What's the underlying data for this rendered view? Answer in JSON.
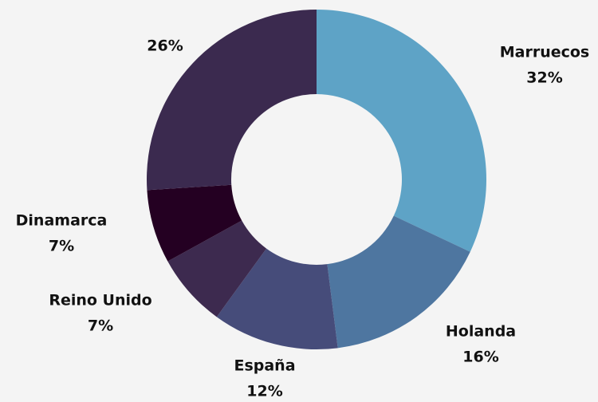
{
  "chart_data": {
    "type": "donut",
    "categories": [
      "Marruecos",
      "Holanda",
      "España",
      "Reino Unido",
      "Dinamarca",
      null
    ],
    "values": [
      32,
      16,
      12,
      7,
      7,
      26
    ],
    "value_labels": [
      "32%",
      "16%",
      "12%",
      "7%",
      "7%",
      "26%"
    ],
    "colors": [
      "#5ea3c6",
      "#4e76a0",
      "#464c7a",
      "#3d2a4f",
      "#240022",
      "#3b2a4f"
    ]
  }
}
